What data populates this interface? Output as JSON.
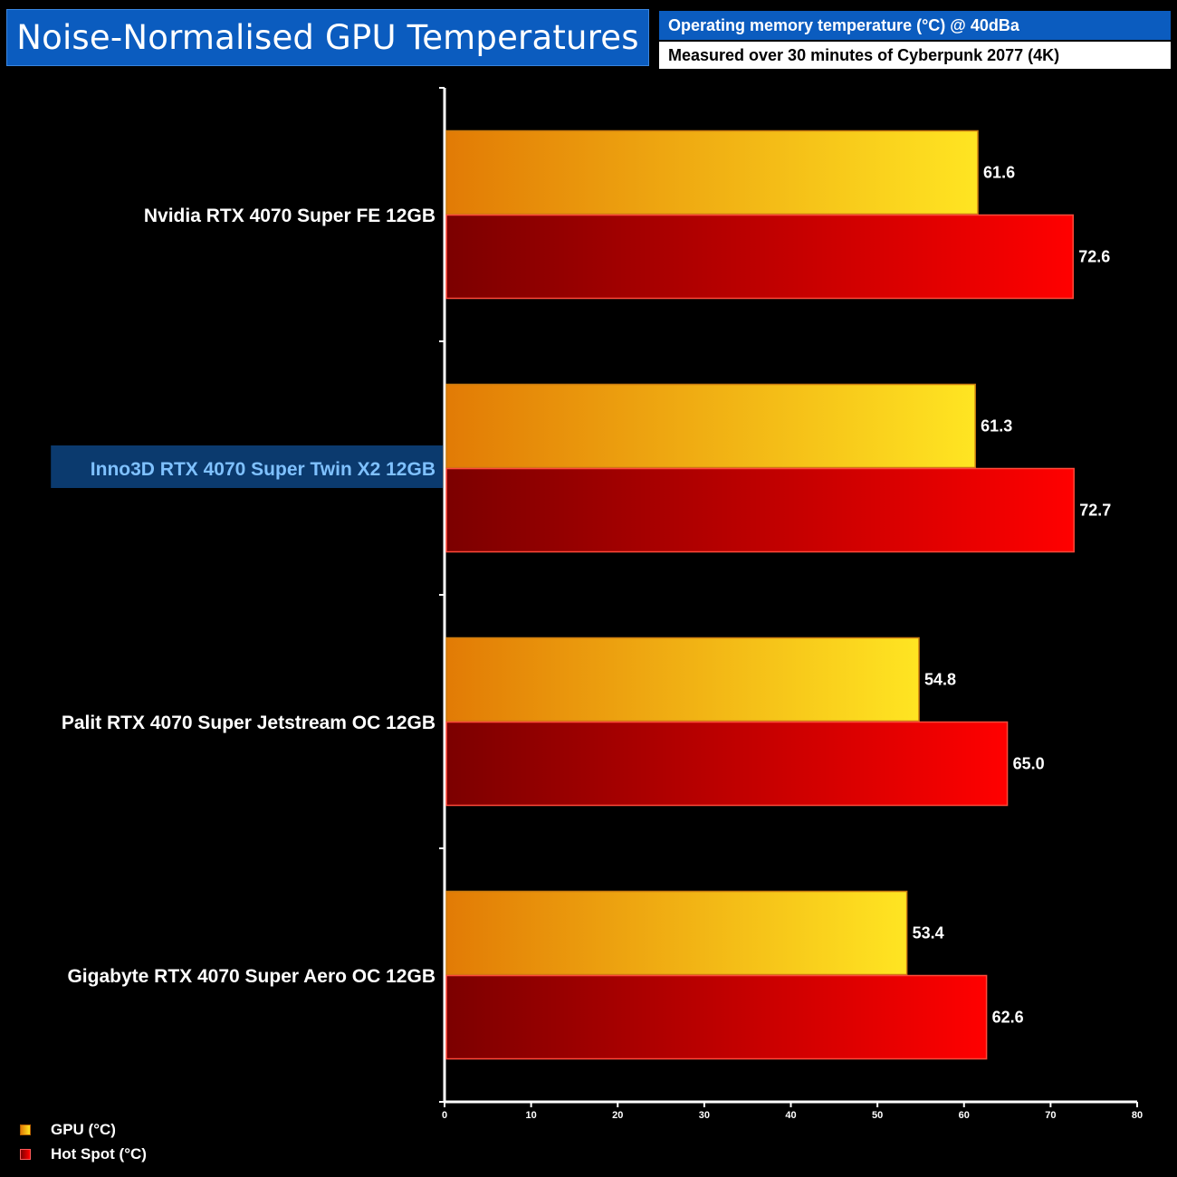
{
  "header": {
    "title": "Noise-Normalised GPU Temperatures",
    "subtitle_primary": "Operating memory temperature (°C) @ 40dBa",
    "subtitle_secondary": "Measured over 30 minutes of Cyberpunk 2077 (4K)"
  },
  "colors": {
    "title_bg": "#0b5cbf",
    "gpu_start": "#e27b05",
    "gpu_end": "#ffe522",
    "hot_start": "#7c0000",
    "hot_end": "#ff0000",
    "highlight_bg": "#0b3a6e",
    "highlight_text": "#7fc1ff"
  },
  "chart_data": {
    "type": "bar",
    "orientation": "horizontal",
    "title": "Noise-Normalised GPU Temperatures",
    "categories": [
      "Nvidia RTX 4070 Super FE 12GB",
      "Inno3D RTX 4070 Super Twin X2 12GB",
      "Palit RTX 4070 Super Jetstream OC 12GB",
      "Gigabyte RTX 4070 Super Aero OC 12GB"
    ],
    "highlighted_category": "Inno3D RTX 4070 Super Twin X2 12GB",
    "series": [
      {
        "name": "GPU (°C)",
        "values": [
          61.6,
          61.3,
          54.8,
          53.4
        ],
        "labels": [
          "61.6",
          "61.3",
          "54.8",
          "53.4"
        ]
      },
      {
        "name": "Hot Spot (°C)",
        "values": [
          72.6,
          72.7,
          65.0,
          62.6
        ],
        "labels": [
          "72.6",
          "72.7",
          "65.0",
          "62.6"
        ]
      }
    ],
    "xlim": [
      0,
      80
    ],
    "xticks": [
      "0",
      "10",
      "20",
      "30",
      "40",
      "50",
      "60",
      "70",
      "80"
    ],
    "xlabel": "",
    "ylabel": "",
    "grid": false,
    "legend_position": "bottom-left"
  }
}
